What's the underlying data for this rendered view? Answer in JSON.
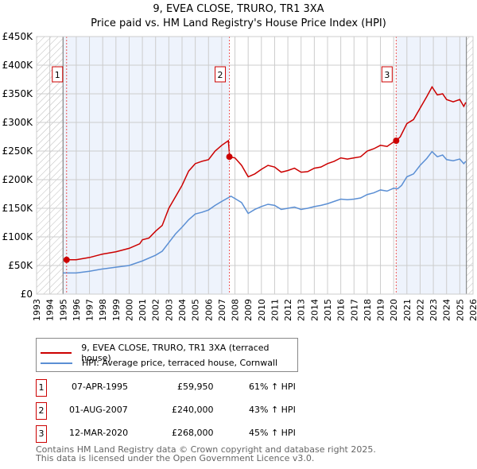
{
  "chart_data": {
    "type": "line",
    "title": "9, EVEA CLOSE, TRURO, TR1 3XA",
    "subtitle": "Price paid vs. HM Land Registry's House Price Index (HPI)",
    "xlim": [
      1993,
      2026
    ],
    "ylim": [
      0,
      450000
    ],
    "x_ticks": [
      "1993",
      "1994",
      "1995",
      "1996",
      "1997",
      "1998",
      "1999",
      "2000",
      "2001",
      "2002",
      "2003",
      "2004",
      "2005",
      "2006",
      "2007",
      "2008",
      "2009",
      "2010",
      "2011",
      "2012",
      "2013",
      "2014",
      "2015",
      "2016",
      "2017",
      "2018",
      "2019",
      "2020",
      "2021",
      "2022",
      "2023",
      "2024",
      "2025",
      "2026"
    ],
    "y_ticks": [
      "£0",
      "£50K",
      "£100K",
      "£150K",
      "£200K",
      "£250K",
      "£300K",
      "£350K",
      "£400K",
      "£450K"
    ],
    "grid": true,
    "series": [
      {
        "name": "9, EVEA CLOSE, TRURO, TR1 3XA (terraced house)",
        "color": "#cc0000",
        "x": [
          1995.27,
          1996,
          1997,
          1998,
          1999,
          2000,
          2000.8,
          2001,
          2001.5,
          2002,
          2002.5,
          2003,
          2003.5,
          2004,
          2004.5,
          2005,
          2005.5,
          2006,
          2006.5,
          2007,
          2007.5,
          2007.6,
          2008,
          2008.5,
          2009,
          2009.5,
          2010,
          2010.5,
          2011,
          2011.5,
          2012,
          2012.5,
          2013,
          2013.5,
          2014,
          2014.5,
          2015,
          2015.5,
          2016,
          2016.5,
          2017,
          2017.5,
          2018,
          2018.5,
          2019,
          2019.5,
          2020,
          2020.2,
          2020.5,
          2021,
          2021.5,
          2022,
          2022.5,
          2022.9,
          2023.3,
          2023.7,
          2024,
          2024.5,
          2025,
          2025.3,
          2025.45
        ],
        "y": [
          60,
          60,
          64,
          70,
          74,
          80,
          88,
          95,
          98,
          110,
          120,
          150,
          170,
          190,
          215,
          228,
          232,
          235,
          250,
          260,
          268,
          240,
          238,
          225,
          205,
          210,
          218,
          225,
          222,
          213,
          216,
          220,
          213,
          214,
          220,
          222,
          228,
          232,
          238,
          236,
          238,
          240,
          250,
          254,
          260,
          258,
          266,
          268,
          275,
          298,
          305,
          325,
          345,
          362,
          348,
          350,
          340,
          336,
          340,
          328,
          335
        ]
      },
      {
        "name": "HPI: Average price, terraced house, Cornwall",
        "color": "#5b8fd4",
        "x": [
          1995,
          1996,
          1997,
          1998,
          1999,
          2000,
          2001,
          2002,
          2002.5,
          2003,
          2003.5,
          2004,
          2004.5,
          2005,
          2005.5,
          2006,
          2006.5,
          2007,
          2007.7,
          2008,
          2008.5,
          2009,
          2009.5,
          2010,
          2010.5,
          2011,
          2011.5,
          2012,
          2012.5,
          2013,
          2013.5,
          2014,
          2014.5,
          2015,
          2015.5,
          2016,
          2016.5,
          2017,
          2017.5,
          2018,
          2018.5,
          2019,
          2019.5,
          2020,
          2020.3,
          2020.6,
          2021,
          2021.5,
          2022,
          2022.5,
          2022.9,
          2023.3,
          2023.7,
          2024,
          2024.5,
          2025,
          2025.3,
          2025.45
        ],
        "y": [
          37,
          37,
          40,
          44,
          47,
          50,
          58,
          68,
          75,
          90,
          105,
          117,
          130,
          140,
          143,
          147,
          155,
          162,
          171,
          167,
          160,
          141,
          148,
          153,
          157,
          155,
          148,
          150,
          152,
          148,
          150,
          153,
          155,
          158,
          162,
          166,
          165,
          166,
          168,
          174,
          177,
          182,
          180,
          185,
          184,
          190,
          205,
          210,
          225,
          237,
          249,
          240,
          243,
          235,
          233,
          236,
          228,
          232
        ]
      }
    ],
    "y_unit": "thousands GBP",
    "sales": [
      {
        "label": "1",
        "x": 1995.27,
        "y": 59.95
      },
      {
        "label": "2",
        "x": 2007.58,
        "y": 240
      },
      {
        "label": "3",
        "x": 2020.19,
        "y": 268
      }
    ],
    "data_range": [
      1995,
      2025.5
    ]
  },
  "legend": {
    "red": "9, EVEA CLOSE, TRURO, TR1 3XA (terraced house)",
    "blue": "HPI: Average price, terraced house, Cornwall"
  },
  "transactions": [
    {
      "n": "1",
      "date": "07-APR-1995",
      "price": "£59,950",
      "hpi": "61% ↑ HPI"
    },
    {
      "n": "2",
      "date": "01-AUG-2007",
      "price": "£240,000",
      "hpi": "43% ↑ HPI"
    },
    {
      "n": "3",
      "date": "12-MAR-2020",
      "price": "£268,000",
      "hpi": "45% ↑ HPI"
    }
  ],
  "footer": {
    "line1": "Contains HM Land Registry data © Crown copyright and database right 2025.",
    "line2": "This data is licensed under the Open Government Licence v3.0."
  }
}
